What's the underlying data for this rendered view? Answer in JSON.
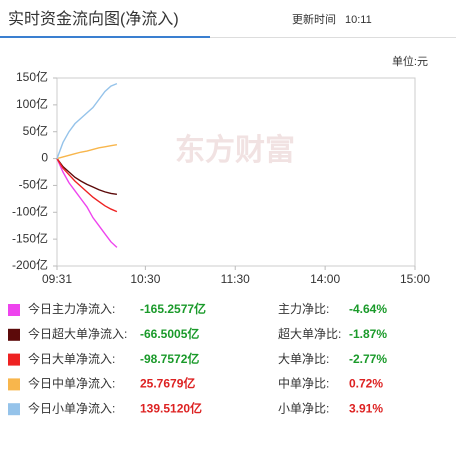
{
  "header": {
    "title": "实时资金流向图(净流入)",
    "update_label": "更新时间",
    "update_time": "10:11"
  },
  "unit_label": "单位:元",
  "chart_data": {
    "type": "line",
    "watermark": "东方财富",
    "x": [
      1,
      5,
      9,
      13,
      17,
      21,
      25,
      29,
      33,
      37,
      41
    ],
    "xlim": [
      1,
      240
    ],
    "xticks": [
      {
        "value": 1,
        "label": "09:31"
      },
      {
        "value": 60,
        "label": "10:30"
      },
      {
        "value": 120,
        "label": "11:30"
      },
      {
        "value": 180,
        "label": "14:00"
      },
      {
        "value": 240,
        "label": "15:00"
      }
    ],
    "ylim": [
      -200,
      150
    ],
    "yticks": [
      {
        "value": 150,
        "label": "150亿"
      },
      {
        "value": 100,
        "label": "100亿"
      },
      {
        "value": 50,
        "label": "50亿"
      },
      0,
      {
        "value": -50,
        "label": "-50亿"
      },
      {
        "value": -100,
        "label": "-100亿"
      },
      {
        "value": -150,
        "label": "-150亿"
      },
      {
        "value": -200,
        "label": "-200亿"
      }
    ],
    "series": [
      {
        "name": "今日主力净流入:",
        "color": "#ee44ee",
        "values": [
          0,
          -25,
          -45,
          -60,
          -75,
          -90,
          -110,
          -125,
          -140,
          -155,
          -165.2577
        ],
        "total": "-165.2577亿",
        "ratio_name": "主力净比:",
        "ratio": "-4.64%"
      },
      {
        "name": "今日超大单净流入:",
        "color": "#5c0a0a",
        "values": [
          0,
          -15,
          -25,
          -35,
          -42,
          -48,
          -53,
          -58,
          -62,
          -65,
          -66.5005
        ],
        "total": "-66.5005亿",
        "ratio_name": "超大单净比:",
        "ratio": "-1.87%"
      },
      {
        "name": "今日大单净流入:",
        "color": "#ee2222",
        "values": [
          0,
          -18,
          -30,
          -42,
          -52,
          -62,
          -72,
          -80,
          -88,
          -94,
          -98.7572
        ],
        "total": "-98.7572亿",
        "ratio_name": "大单净比:",
        "ratio": "-2.77%"
      },
      {
        "name": "今日中单净流入:",
        "color": "#f8b64c",
        "values": [
          0,
          3,
          6,
          9,
          12,
          14,
          17,
          20,
          22,
          24,
          25.7679
        ],
        "total": "25.7679亿",
        "ratio_name": "中单净比:",
        "ratio": "0.72%"
      },
      {
        "name": "今日小单净流入:",
        "color": "#95c3ea",
        "values": [
          0,
          30,
          50,
          65,
          75,
          85,
          95,
          110,
          125,
          135,
          139.512
        ],
        "total": "139.5120亿",
        "ratio_name": "小单净比:",
        "ratio": "3.91%"
      }
    ]
  }
}
